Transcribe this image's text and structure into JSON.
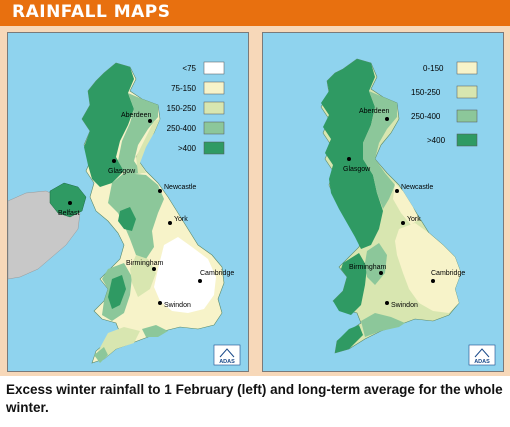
{
  "header": {
    "title": "RAINFALL MAPS"
  },
  "colors": {
    "sea": "#8fd3ee",
    "header": "#e8700f",
    "panel": "#f7d8b9",
    "landGrey": "#c8c8c8",
    "white": "#ffffff",
    "cream": "#f7f3c9",
    "light": "#d8e6b0",
    "mid": "#8cc79a",
    "dark": "#2f9a63"
  },
  "leftMap": {
    "legend": [
      {
        "label": "<75",
        "color": "#ffffff"
      },
      {
        "label": "75-150",
        "color": "#f7f3c9"
      },
      {
        "label": "150-250",
        "color": "#d8e6b0"
      },
      {
        "label": "250-400",
        "color": "#8cc79a"
      },
      {
        "label": ">400",
        "color": "#2f9a63"
      }
    ],
    "cities": {
      "aberdeen": "Aberdeen",
      "glasgow": "Glasgow",
      "belfast": "Belfast",
      "newcastle": "Newcastle",
      "york": "York",
      "birmingham": "Birmingham",
      "cambridge": "Cambridge",
      "swindon": "Swindon"
    },
    "logo": "ADAS"
  },
  "rightMap": {
    "legend": [
      {
        "label": "0-150",
        "color": "#f7f3c9"
      },
      {
        "label": "150-250",
        "color": "#d8e6b0"
      },
      {
        "label": "250-400",
        "color": "#8cc79a"
      },
      {
        "label": ">400",
        "color": "#2f9a63"
      }
    ],
    "cities": {
      "aberdeen": "Aberdeen",
      "glasgow": "Glasgow",
      "newcastle": "Newcastle",
      "york": "York",
      "birmingham": "Birmingham",
      "cambridge": "Cambridge",
      "swindon": "Swindon"
    },
    "logo": "ADAS"
  },
  "caption": "Excess winter rainfall to 1 February (left) and long-term average for the whole winter."
}
